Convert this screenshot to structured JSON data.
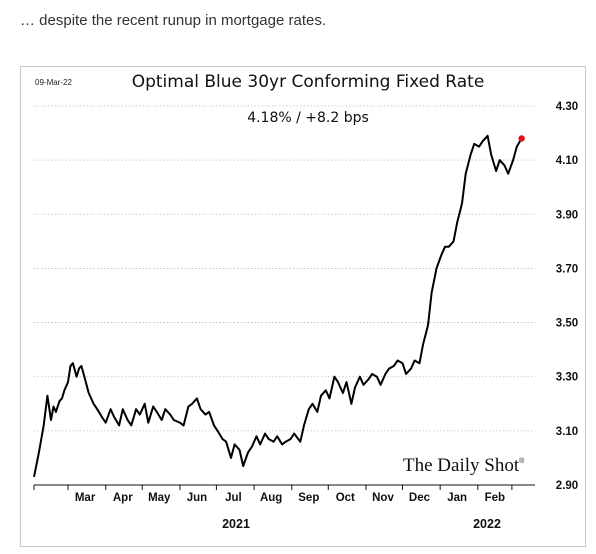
{
  "caption": "… despite the recent runup in mortgage rates.",
  "chart_data": {
    "type": "line",
    "date_stamp": "09-Mar-22",
    "title": "Optimal Blue 30yr Conforming Fixed Rate",
    "subtitle": "4.18%  /  +8.2 bps",
    "brand": "The Daily Shot",
    "brand_mark": "®",
    "ylim": [
      2.9,
      4.3
    ],
    "yticks": [
      "4.30",
      "4.10",
      "3.90",
      "3.70",
      "3.50",
      "3.30",
      "3.10",
      "2.90"
    ],
    "xticks": [
      "Mar",
      "Apr",
      "May",
      "Jun",
      "Jul",
      "Aug",
      "Sep",
      "Oct",
      "Nov",
      "Dec",
      "Jan",
      "Feb"
    ],
    "years": [
      "2021",
      "2022"
    ],
    "grid": true,
    "line_color": "#000000",
    "end_marker_color": "#e0101a",
    "series": [
      {
        "x": [
          "2021-02-01",
          "2021-02-05",
          "2021-02-09",
          "2021-02-12",
          "2021-02-15",
          "2021-02-17",
          "2021-02-19",
          "2021-02-22",
          "2021-02-24",
          "2021-02-26",
          "2021-03-01",
          "2021-03-03",
          "2021-03-05",
          "2021-03-08",
          "2021-03-10",
          "2021-03-12",
          "2021-03-15",
          "2021-03-18",
          "2021-03-22",
          "2021-03-25",
          "2021-03-29",
          "2021-04-01",
          "2021-04-05",
          "2021-04-08",
          "2021-04-12",
          "2021-04-15",
          "2021-04-19",
          "2021-04-22",
          "2021-04-26",
          "2021-04-29",
          "2021-05-03",
          "2021-05-06",
          "2021-05-10",
          "2021-05-13",
          "2021-05-17",
          "2021-05-20",
          "2021-05-24",
          "2021-05-27",
          "2021-06-01",
          "2021-06-04",
          "2021-06-08",
          "2021-06-11",
          "2021-06-15",
          "2021-06-18",
          "2021-06-22",
          "2021-06-25",
          "2021-06-29",
          "2021-07-02",
          "2021-07-06",
          "2021-07-09",
          "2021-07-13",
          "2021-07-16",
          "2021-07-20",
          "2021-07-23",
          "2021-07-27",
          "2021-07-30",
          "2021-08-03",
          "2021-08-06",
          "2021-08-10",
          "2021-08-13",
          "2021-08-17",
          "2021-08-20",
          "2021-08-24",
          "2021-08-27",
          "2021-08-31",
          "2021-09-03",
          "2021-09-08",
          "2021-09-11",
          "2021-09-15",
          "2021-09-18",
          "2021-09-22",
          "2021-09-25",
          "2021-09-29",
          "2021-10-02",
          "2021-10-06",
          "2021-10-09",
          "2021-10-13",
          "2021-10-16",
          "2021-10-20",
          "2021-10-23",
          "2021-10-27",
          "2021-10-30",
          "2021-11-03",
          "2021-11-06",
          "2021-11-10",
          "2021-11-13",
          "2021-11-17",
          "2021-11-20",
          "2021-11-24",
          "2021-11-27",
          "2021-12-01",
          "2021-12-04",
          "2021-12-08",
          "2021-12-11",
          "2021-12-15",
          "2021-12-18",
          "2021-12-22",
          "2021-12-25",
          "2021-12-29",
          "2022-01-02",
          "2022-01-05",
          "2022-01-08",
          "2022-01-12",
          "2022-01-15",
          "2022-01-19",
          "2022-01-22",
          "2022-01-26",
          "2022-01-29",
          "2022-02-02",
          "2022-02-05",
          "2022-02-09",
          "2022-02-12",
          "2022-02-16",
          "2022-02-19",
          "2022-02-23",
          "2022-02-26",
          "2022-03-02",
          "2022-03-05",
          "2022-03-09"
        ],
        "y": [
          2.93,
          3.02,
          3.12,
          3.23,
          3.14,
          3.19,
          3.17,
          3.21,
          3.22,
          3.25,
          3.28,
          3.34,
          3.35,
          3.3,
          3.33,
          3.34,
          3.29,
          3.24,
          3.2,
          3.18,
          3.15,
          3.13,
          3.18,
          3.15,
          3.12,
          3.18,
          3.14,
          3.12,
          3.18,
          3.16,
          3.2,
          3.13,
          3.19,
          3.17,
          3.14,
          3.18,
          3.16,
          3.14,
          3.13,
          3.12,
          3.19,
          3.2,
          3.22,
          3.18,
          3.16,
          3.17,
          3.12,
          3.1,
          3.07,
          3.06,
          3.0,
          3.05,
          3.03,
          2.97,
          3.02,
          3.04,
          3.08,
          3.05,
          3.09,
          3.07,
          3.06,
          3.08,
          3.05,
          3.06,
          3.07,
          3.09,
          3.06,
          3.12,
          3.18,
          3.2,
          3.17,
          3.23,
          3.25,
          3.22,
          3.3,
          3.28,
          3.24,
          3.28,
          3.2,
          3.26,
          3.3,
          3.27,
          3.29,
          3.31,
          3.3,
          3.27,
          3.31,
          3.33,
          3.34,
          3.36,
          3.35,
          3.31,
          3.33,
          3.36,
          3.35,
          3.42,
          3.49,
          3.61,
          3.7,
          3.75,
          3.78,
          3.78,
          3.8,
          3.87,
          3.94,
          4.05,
          4.12,
          4.16,
          4.15,
          4.17,
          4.19,
          4.12,
          4.06,
          4.1,
          4.08,
          4.05,
          4.1,
          4.15,
          4.18
        ]
      }
    ]
  }
}
